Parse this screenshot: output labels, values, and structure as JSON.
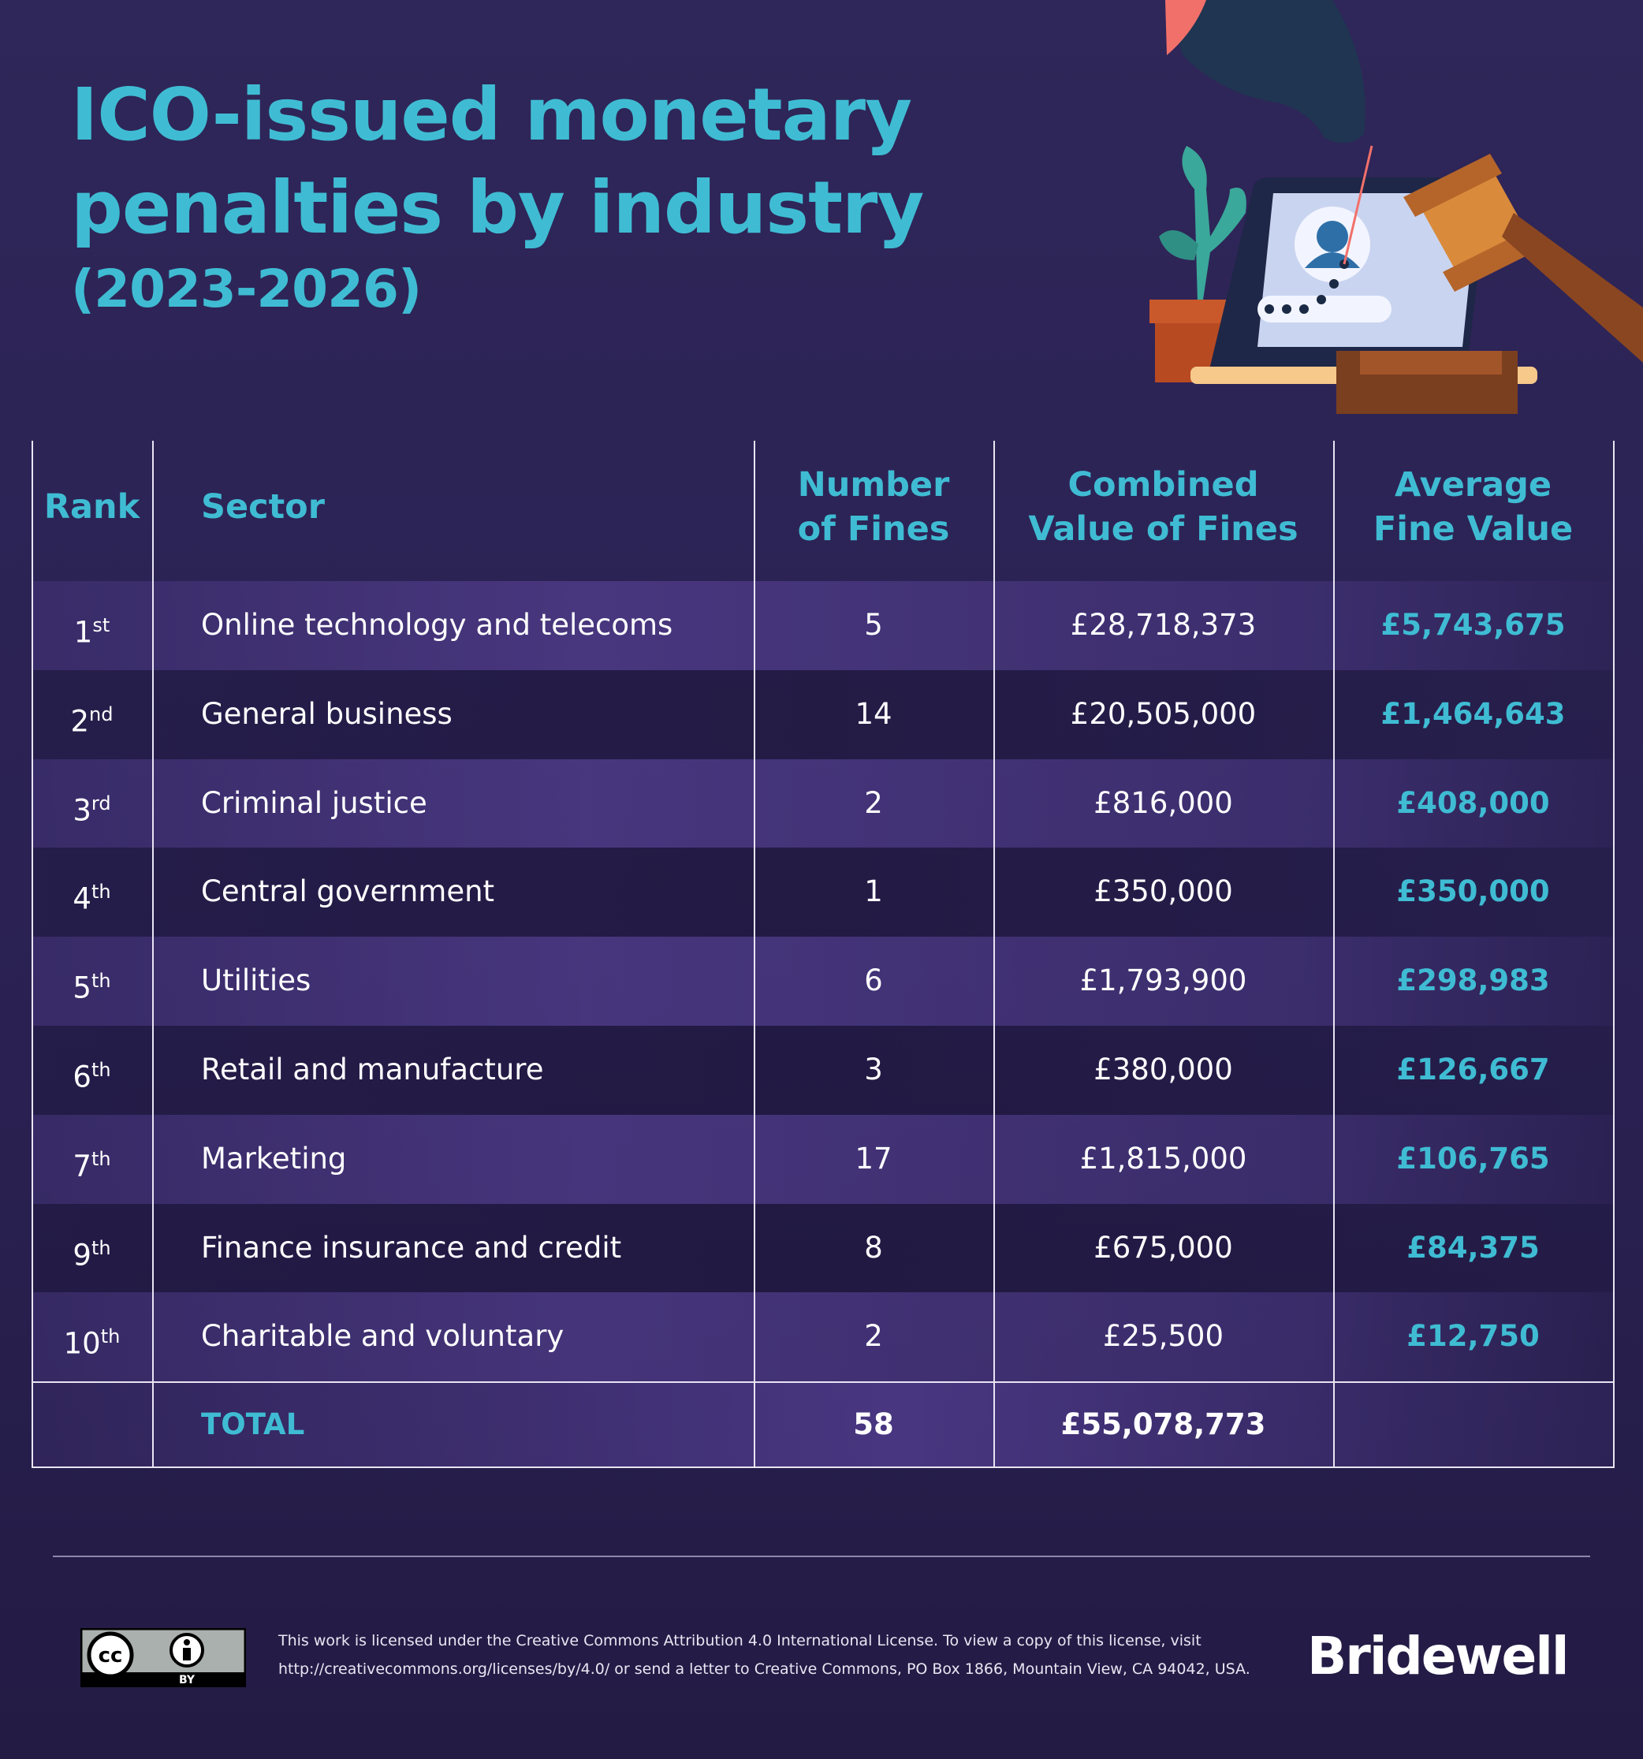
{
  "header": {
    "title_lines": [
      "ICO-issued monetary",
      "penalties by industry",
      "(2023-2026)"
    ]
  },
  "table": {
    "columns": [
      [
        "Rank"
      ],
      [
        "Sector"
      ],
      [
        "Number",
        "of Fines"
      ],
      [
        "Combined",
        "Value of Fines"
      ],
      [
        "Average",
        "Fine Value"
      ]
    ],
    "rows": [
      {
        "rank": "1",
        "rank_suffix": "st",
        "sector": "Online technology and telecoms",
        "number_of_fines": 5,
        "combined_value": "£28,718,373",
        "average_value": "£5,743,675"
      },
      {
        "rank": "2",
        "rank_suffix": "nd",
        "sector": "General business",
        "number_of_fines": 14,
        "combined_value": "£20,505,000",
        "average_value": "£1,464,643"
      },
      {
        "rank": "3",
        "rank_suffix": "rd",
        "sector": "Criminal justice",
        "number_of_fines": 2,
        "combined_value": "£816,000",
        "average_value": "£408,000"
      },
      {
        "rank": "4",
        "rank_suffix": "th",
        "sector": "Central government",
        "number_of_fines": 1,
        "combined_value": "£350,000",
        "average_value": "£350,000"
      },
      {
        "rank": "5",
        "rank_suffix": "th",
        "sector": "Utilities",
        "number_of_fines": 6,
        "combined_value": "£1,793,900",
        "average_value": "£298,983"
      },
      {
        "rank": "6",
        "rank_suffix": "th",
        "sector": "Retail and manufacture",
        "number_of_fines": 3,
        "combined_value": "£380,000",
        "average_value": "£126,667"
      },
      {
        "rank": "7",
        "rank_suffix": "th",
        "sector": "Marketing",
        "number_of_fines": 17,
        "combined_value": "£1,815,000",
        "average_value": "£106,765"
      },
      {
        "rank": "9",
        "rank_suffix": "th",
        "sector": "Finance insurance and credit",
        "number_of_fines": 8,
        "combined_value": "£675,000",
        "average_value": "£84,375"
      },
      {
        "rank": "10",
        "rank_suffix": "th",
        "sector": "Charitable and voluntary",
        "number_of_fines": 2,
        "combined_value": "£25,500",
        "average_value": "£12,750"
      }
    ],
    "total": {
      "label": "TOTAL",
      "number_of_fines": 58,
      "combined_value": "£55,078,773"
    }
  },
  "footer": {
    "license_badge": {
      "cc": "cc",
      "by": "BY"
    },
    "license_lines": [
      "This work is licensed under the Creative Commons Attribution 4.0 International License. To view a copy of this license, visit",
      "http://creativecommons.org/licenses/by/4.0/ or send a letter to Creative Commons, PO Box 1866, Mountain View, CA 94042, USA."
    ],
    "brand": "Bridewell"
  }
}
